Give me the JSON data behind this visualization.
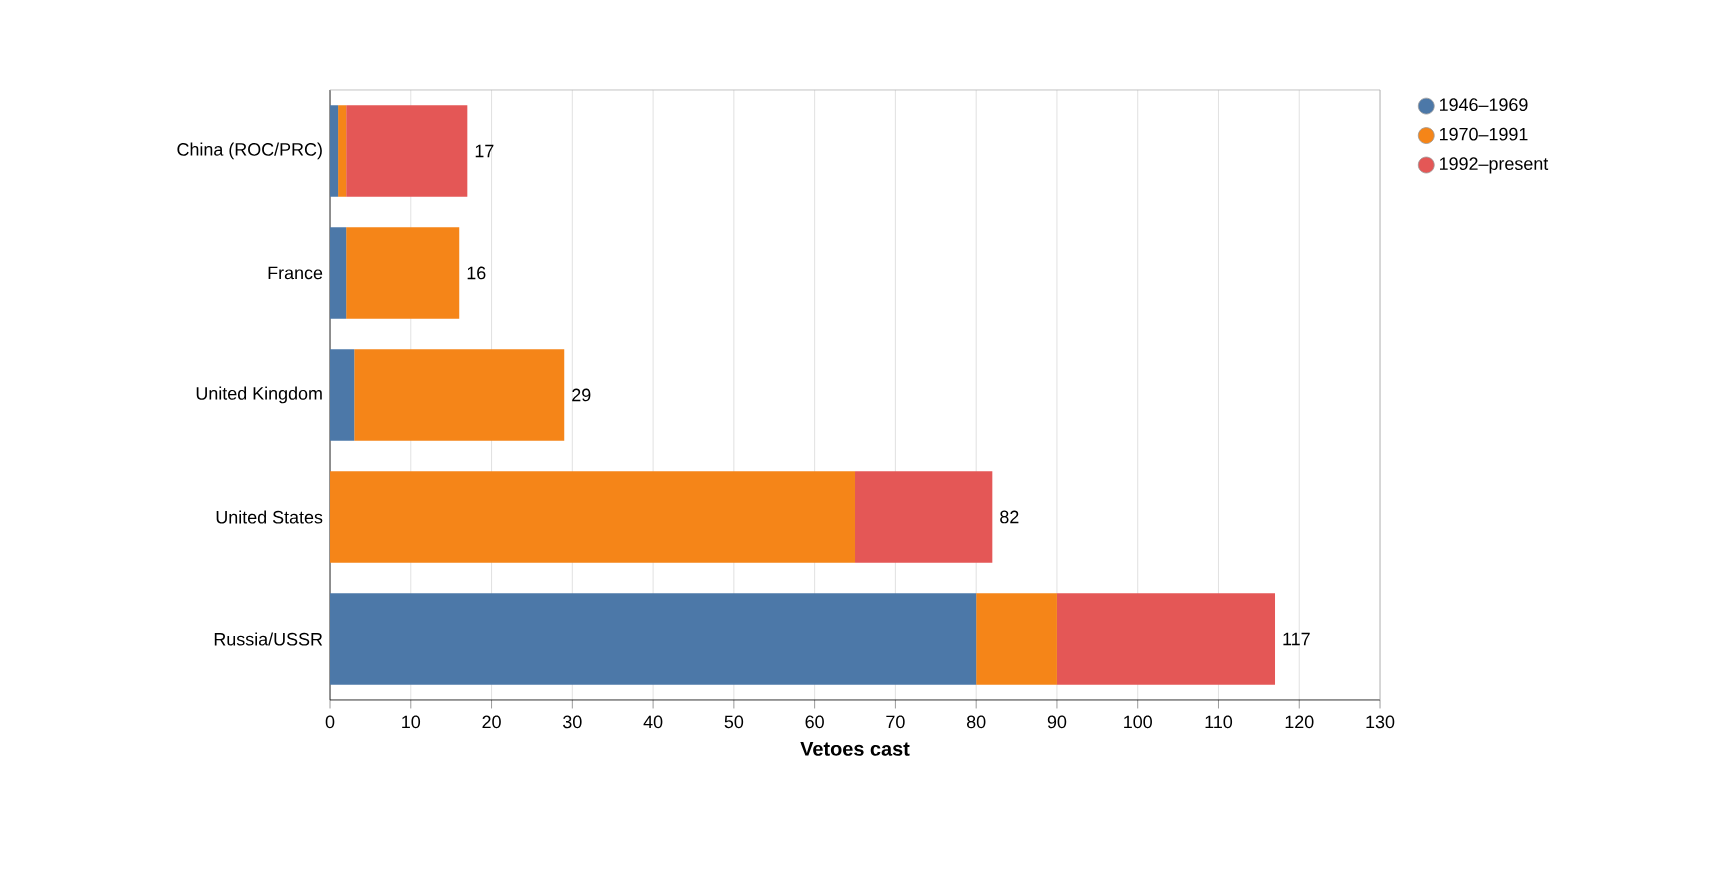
{
  "chart_data": {
    "type": "bar",
    "orientation": "horizontal",
    "stacked": true,
    "categories": [
      "China (ROC/PRC)",
      "France",
      "United Kingdom",
      "United States",
      "Russia/USSR"
    ],
    "series": [
      {
        "name": "1946–1969",
        "color": "#4c78a8",
        "values": [
          1,
          2,
          3,
          0,
          80
        ]
      },
      {
        "name": "1970–1991",
        "color": "#f58518",
        "values": [
          1,
          14,
          26,
          65,
          10
        ]
      },
      {
        "name": "1992–present",
        "color": "#e45756",
        "values": [
          15,
          0,
          0,
          17,
          27
        ]
      }
    ],
    "totals": [
      "17",
      "16",
      "29",
      "82",
      "117"
    ],
    "xlabel": "Vetoes cast",
    "xlim": [
      0,
      130
    ],
    "xticks": [
      0,
      10,
      20,
      30,
      40,
      50,
      60,
      70,
      80,
      90,
      100,
      110,
      120,
      130
    ],
    "grid": "x",
    "legend": "top right"
  }
}
